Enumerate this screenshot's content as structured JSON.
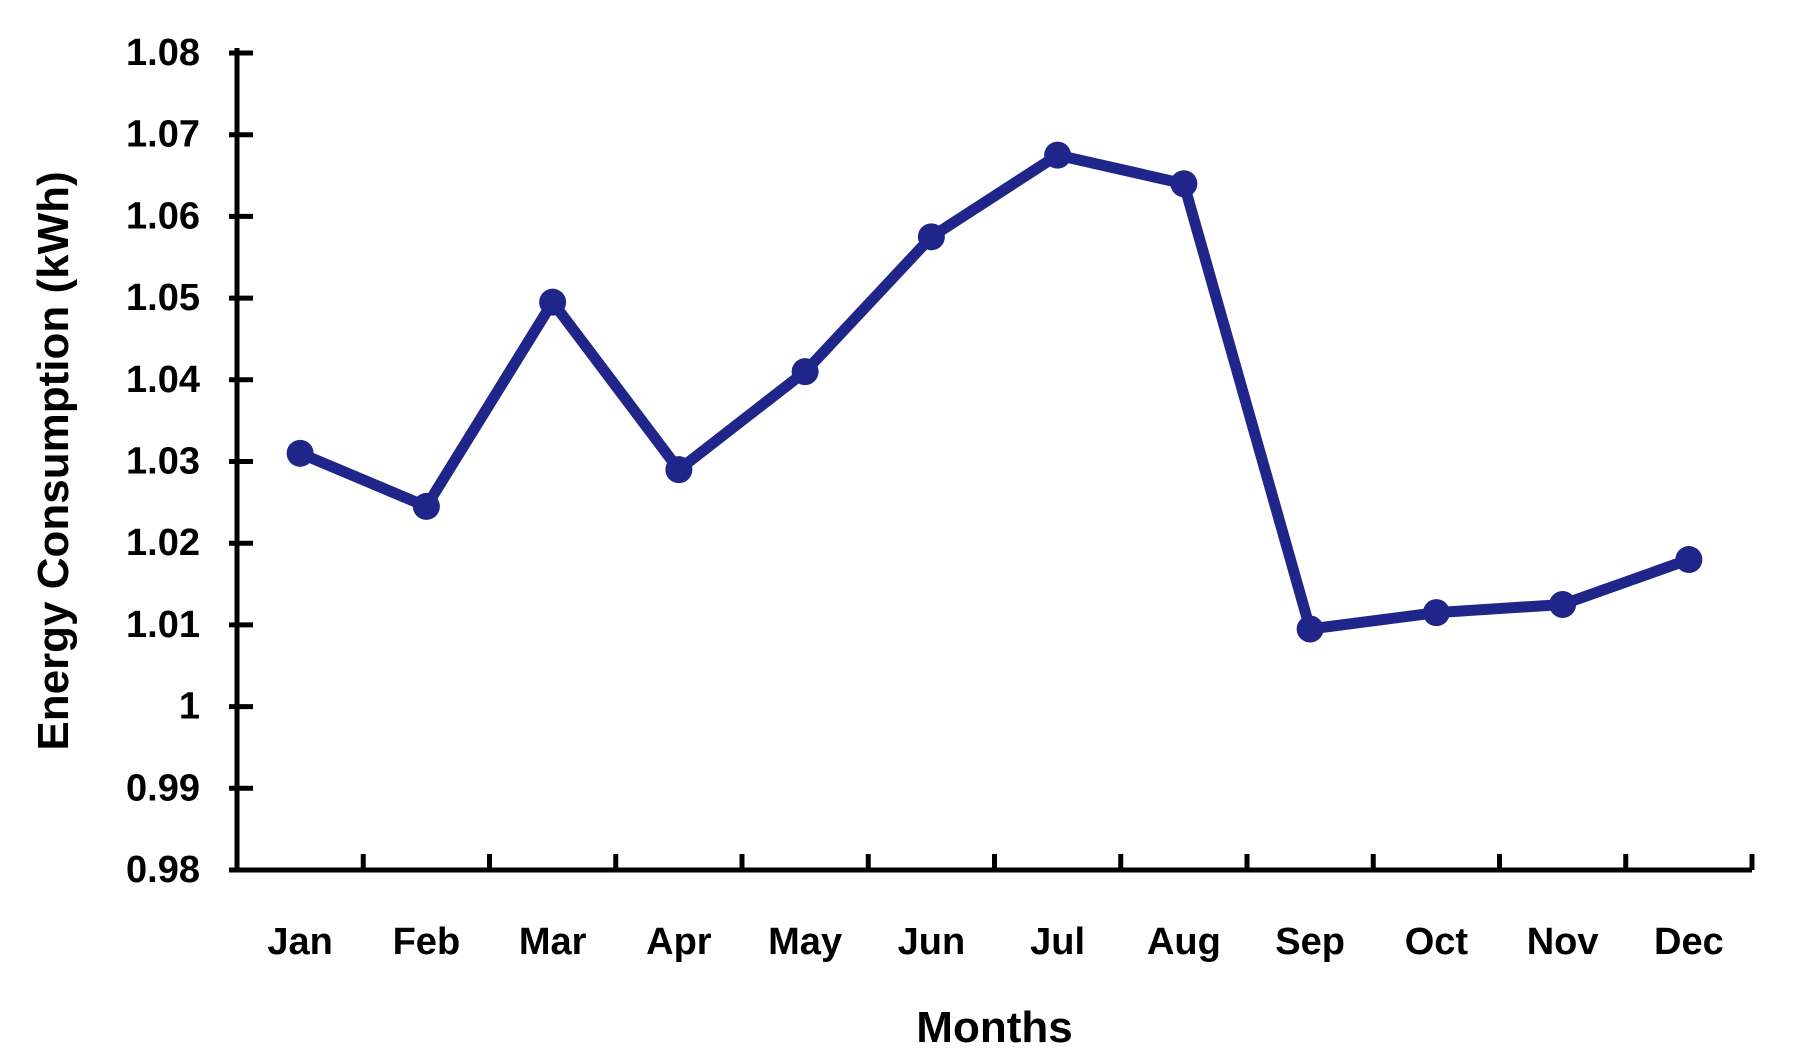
{
  "chart_data": {
    "type": "line",
    "categories": [
      "Jan",
      "Feb",
      "Mar",
      "Apr",
      "May",
      "Jun",
      "Jul",
      "Aug",
      "Sep",
      "Oct",
      "Nov",
      "Dec"
    ],
    "series": [
      {
        "name": "Energy Consumption",
        "values": [
          1.031,
          1.0245,
          1.0495,
          1.029,
          1.041,
          1.0575,
          1.0675,
          1.064,
          1.0095,
          1.0115,
          1.0125,
          1.018
        ]
      }
    ],
    "xlabel": "Months",
    "ylabel": "Energy Consumption (kWh)",
    "ylim": [
      0.98,
      1.08
    ],
    "ytick_interval": 0.01,
    "ytick_labels": [
      "0.98",
      "0.99",
      "1",
      "1.01",
      "1.02",
      "1.03",
      "1.04",
      "1.05",
      "1.06",
      "1.07",
      "1.08"
    ],
    "grid": false,
    "legend_position": "none",
    "line_color": "#1f2589",
    "axis_color": "#000000",
    "background_color": "#ffffff",
    "marker": "circle"
  }
}
